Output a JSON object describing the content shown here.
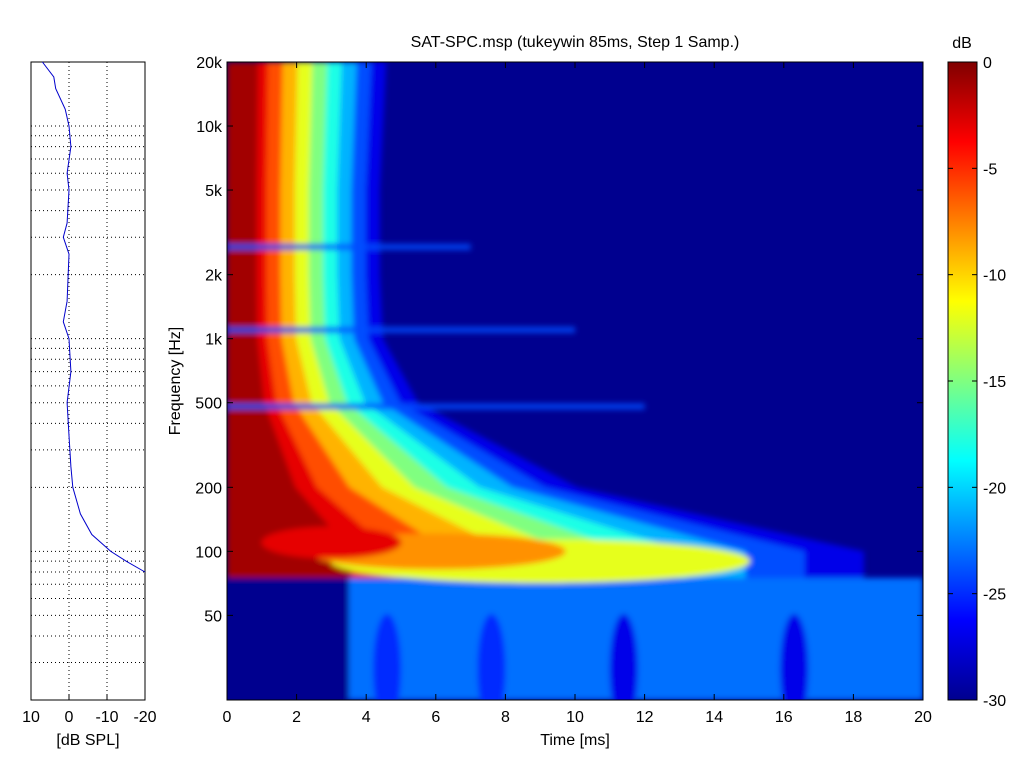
{
  "chart_data": [
    {
      "type": "heatmap",
      "title": "SAT-SPC.msp (tukeywin 85ms, Step 1 Samp.)",
      "xlabel": "Time [ms]",
      "ylabel": "Frequency [Hz]",
      "xlim": [
        0,
        20
      ],
      "ylim": [
        20,
        20000
      ],
      "y_scale": "log",
      "x_ticks": [
        {
          "v": 0,
          "label": "0"
        },
        {
          "v": 2,
          "label": "2"
        },
        {
          "v": 4,
          "label": "4"
        },
        {
          "v": 6,
          "label": "6"
        },
        {
          "v": 8,
          "label": "8"
        },
        {
          "v": 10,
          "label": "10"
        },
        {
          "v": 12,
          "label": "12"
        },
        {
          "v": 14,
          "label": "14"
        },
        {
          "v": 16,
          "label": "16"
        },
        {
          "v": 18,
          "label": "18"
        },
        {
          "v": 20,
          "label": "20"
        }
      ],
      "y_ticks": [
        {
          "v": 50,
          "label": "50"
        },
        {
          "v": 100,
          "label": "100"
        },
        {
          "v": 200,
          "label": "200"
        },
        {
          "v": 500,
          "label": "500"
        },
        {
          "v": 1000,
          "label": "1k"
        },
        {
          "v": 2000,
          "label": "2k"
        },
        {
          "v": 5000,
          "label": "5k"
        },
        {
          "v": 10000,
          "label": "10k"
        },
        {
          "v": 20000,
          "label": "20k"
        }
      ],
      "colorbar": {
        "label": "dB",
        "range": [
          -30,
          0
        ],
        "ticks": [
          {
            "v": 0,
            "label": "0"
          },
          {
            "v": -5,
            "label": "-5"
          },
          {
            "v": -10,
            "label": "-10"
          },
          {
            "v": -15,
            "label": "-15"
          },
          {
            "v": -20,
            "label": "-20"
          },
          {
            "v": -25,
            "label": "-25"
          },
          {
            "v": -30,
            "label": "-30"
          }
        ],
        "colormap": "jet"
      },
      "decay_time_ms_by_frequency": [
        {
          "f": 20000,
          "t": 5.0
        },
        {
          "f": 10000,
          "t": 4.9
        },
        {
          "f": 5000,
          "t": 4.8
        },
        {
          "f": 2000,
          "t": 4.8
        },
        {
          "f": 1000,
          "t": 4.9
        },
        {
          "f": 500,
          "t": 6.0
        },
        {
          "f": 200,
          "t": 11.0
        },
        {
          "f": 100,
          "t": 20.0
        },
        {
          "f": 50,
          "t": 20.0
        }
      ]
    },
    {
      "type": "line",
      "xlabel": "[dB SPL]",
      "xlim": [
        10,
        -20
      ],
      "ylim": [
        20,
        20000
      ],
      "y_scale": "log",
      "x_ticks": [
        {
          "v": 10,
          "label": "10"
        },
        {
          "v": 0,
          "label": "0"
        },
        {
          "v": -10,
          "label": "-10"
        },
        {
          "v": -20,
          "label": "-20"
        }
      ],
      "grid": true,
      "series": [
        {
          "color": "#0000cc",
          "points": [
            {
              "f": 20000,
              "db": 7
            },
            {
              "f": 17000,
              "db": 4
            },
            {
              "f": 15000,
              "db": 3.5
            },
            {
              "f": 12000,
              "db": 1
            },
            {
              "f": 10000,
              "db": 0
            },
            {
              "f": 8000,
              "db": -0.5
            },
            {
              "f": 6000,
              "db": 0.5
            },
            {
              "f": 5000,
              "db": 0
            },
            {
              "f": 3500,
              "db": 0.5
            },
            {
              "f": 3000,
              "db": 1.5
            },
            {
              "f": 2500,
              "db": 0
            },
            {
              "f": 1500,
              "db": 0.5
            },
            {
              "f": 1200,
              "db": 1.5
            },
            {
              "f": 1000,
              "db": 0
            },
            {
              "f": 700,
              "db": -0.5
            },
            {
              "f": 500,
              "db": 0.5
            },
            {
              "f": 350,
              "db": 0
            },
            {
              "f": 250,
              "db": -0.5
            },
            {
              "f": 200,
              "db": -1
            },
            {
              "f": 150,
              "db": -3
            },
            {
              "f": 120,
              "db": -6
            },
            {
              "f": 100,
              "db": -11
            },
            {
              "f": 90,
              "db": -15
            },
            {
              "f": 80,
              "db": -20
            }
          ]
        }
      ]
    }
  ],
  "colors": {
    "line": "#0000cc",
    "colormap_stops": [
      "#00008f",
      "#0000ff",
      "#0080ff",
      "#00ffff",
      "#80ff80",
      "#ffff00",
      "#ff8000",
      "#ff0000",
      "#800000"
    ]
  }
}
